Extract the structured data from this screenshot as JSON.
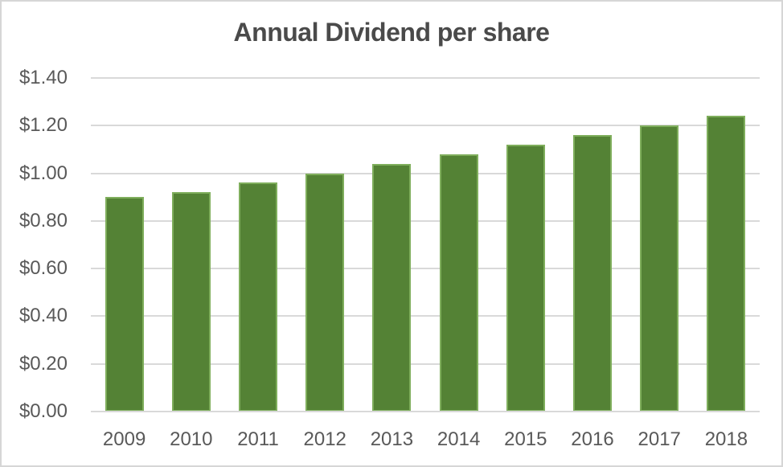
{
  "chart_data": {
    "type": "bar",
    "title": "Annual Dividend per share",
    "categories": [
      "2009",
      "2010",
      "2011",
      "2012",
      "2013",
      "2014",
      "2015",
      "2016",
      "2017",
      "2018"
    ],
    "values": [
      0.9,
      0.92,
      0.96,
      1.0,
      1.04,
      1.08,
      1.12,
      1.16,
      1.2,
      1.24
    ],
    "xlabel": "",
    "ylabel": "",
    "ylim": [
      0,
      1.4
    ],
    "y_tick_step": 0.2,
    "y_tick_labels": [
      "$0.00",
      "$0.20",
      "$0.40",
      "$0.60",
      "$0.80",
      "$1.00",
      "$1.20",
      "$1.40"
    ],
    "grid": true,
    "legend": "none",
    "colors": {
      "bar_fill": "#548235",
      "bar_edge": "#7fae5c",
      "title_text": "#4a4a4a",
      "axis_text": "#595959",
      "gridline": "#d9d9d9",
      "axis_line": "#d9d9d9",
      "background": "#ffffff",
      "frame_border": "#d6d6d6"
    }
  }
}
